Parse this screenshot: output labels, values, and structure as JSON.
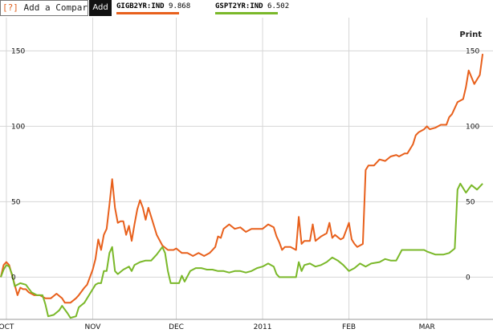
{
  "toolbar": {
    "help_label": "[?]",
    "compare_placeholder": "Add a Comparis",
    "add_label": "Add",
    "print_label": "Print"
  },
  "legend": [
    {
      "label": "GIGB2YR:IND",
      "value": "9.868",
      "color": "#e8601c"
    },
    {
      "label": "GSPT2YR:IND",
      "value": "6.502",
      "color": "#7ab829"
    }
  ],
  "chart_data": {
    "type": "line",
    "title": "",
    "xlabel": "",
    "ylabel": "",
    "ylim": [
      -28,
      172
    ],
    "xlim": [
      "2010-09-29",
      "2011-03-23"
    ],
    "y_ticks": [
      0,
      50,
      100,
      150
    ],
    "x_ticks": [
      {
        "date": "2010-10-01",
        "label": "OCT"
      },
      {
        "date": "2010-11-01",
        "label": "NOV"
      },
      {
        "date": "2010-12-01",
        "label": "DEC"
      },
      {
        "date": "2011-01-01",
        "label": "2011"
      },
      {
        "date": "2011-02-01",
        "label": "FEB"
      },
      {
        "date": "2011-03-01",
        "label": "MAR"
      }
    ],
    "grid": true,
    "series": [
      {
        "name": "GIGB2YR:IND",
        "color": "#e8601c",
        "points": [
          [
            "2010-09-29",
            0
          ],
          [
            "2010-09-30",
            8
          ],
          [
            "2010-10-01",
            10
          ],
          [
            "2010-10-02",
            8
          ],
          [
            "2010-10-04",
            -5
          ],
          [
            "2010-10-05",
            -12
          ],
          [
            "2010-10-06",
            -7
          ],
          [
            "2010-10-07",
            -8
          ],
          [
            "2010-10-08",
            -8
          ],
          [
            "2010-10-09",
            -10
          ],
          [
            "2010-10-11",
            -12
          ],
          [
            "2010-10-13",
            -12
          ],
          [
            "2010-10-15",
            -14
          ],
          [
            "2010-10-17",
            -14
          ],
          [
            "2010-10-19",
            -11
          ],
          [
            "2010-10-21",
            -14
          ],
          [
            "2010-10-22",
            -17
          ],
          [
            "2010-10-24",
            -17
          ],
          [
            "2010-10-26",
            -14
          ],
          [
            "2010-10-27",
            -12
          ],
          [
            "2010-10-29",
            -7
          ],
          [
            "2010-10-30",
            -5
          ],
          [
            "2010-11-01",
            5
          ],
          [
            "2010-11-02",
            12
          ],
          [
            "2010-11-03",
            25
          ],
          [
            "2010-11-04",
            18
          ],
          [
            "2010-11-05",
            28
          ],
          [
            "2010-11-06",
            32
          ],
          [
            "2010-11-07",
            48
          ],
          [
            "2010-11-08",
            65
          ],
          [
            "2010-11-09",
            46
          ],
          [
            "2010-11-10",
            36
          ],
          [
            "2010-11-11",
            37
          ],
          [
            "2010-11-12",
            37
          ],
          [
            "2010-11-13",
            28
          ],
          [
            "2010-11-14",
            34
          ],
          [
            "2010-11-15",
            24
          ],
          [
            "2010-11-16",
            35
          ],
          [
            "2010-11-17",
            45
          ],
          [
            "2010-11-18",
            51
          ],
          [
            "2010-11-19",
            46
          ],
          [
            "2010-11-20",
            38
          ],
          [
            "2010-11-21",
            46
          ],
          [
            "2010-11-22",
            40
          ],
          [
            "2010-11-24",
            28
          ],
          [
            "2010-11-26",
            21
          ],
          [
            "2010-11-28",
            18
          ],
          [
            "2010-11-30",
            18
          ],
          [
            "2010-12-01",
            19
          ],
          [
            "2010-12-03",
            16
          ],
          [
            "2010-12-05",
            16
          ],
          [
            "2010-12-07",
            14
          ],
          [
            "2010-12-09",
            16
          ],
          [
            "2010-12-11",
            14
          ],
          [
            "2010-12-13",
            16
          ],
          [
            "2010-12-15",
            20
          ],
          [
            "2010-12-16",
            27
          ],
          [
            "2010-12-17",
            26
          ],
          [
            "2010-12-18",
            32
          ],
          [
            "2010-12-20",
            35
          ],
          [
            "2010-12-22",
            32
          ],
          [
            "2010-12-24",
            33
          ],
          [
            "2010-12-26",
            30
          ],
          [
            "2010-12-28",
            32
          ],
          [
            "2010-12-30",
            32
          ],
          [
            "2011-01-01",
            32
          ],
          [
            "2011-01-03",
            35
          ],
          [
            "2011-01-05",
            33
          ],
          [
            "2011-01-06",
            27
          ],
          [
            "2011-01-07",
            23
          ],
          [
            "2011-01-08",
            18
          ],
          [
            "2011-01-09",
            20
          ],
          [
            "2011-01-11",
            20
          ],
          [
            "2011-01-13",
            18
          ],
          [
            "2011-01-14",
            40
          ],
          [
            "2011-01-15",
            22
          ],
          [
            "2011-01-16",
            24
          ],
          [
            "2011-01-18",
            24
          ],
          [
            "2011-01-19",
            35
          ],
          [
            "2011-01-20",
            24
          ],
          [
            "2011-01-22",
            27
          ],
          [
            "2011-01-24",
            29
          ],
          [
            "2011-01-25",
            36
          ],
          [
            "2011-01-26",
            26
          ],
          [
            "2011-01-27",
            28
          ],
          [
            "2011-01-29",
            25
          ],
          [
            "2011-01-30",
            26
          ],
          [
            "2011-02-01",
            36
          ],
          [
            "2011-02-02",
            25
          ],
          [
            "2011-02-03",
            22
          ],
          [
            "2011-02-04",
            20
          ],
          [
            "2011-02-06",
            22
          ],
          [
            "2011-02-07",
            71
          ],
          [
            "2011-02-08",
            74
          ],
          [
            "2011-02-10",
            74
          ],
          [
            "2011-02-12",
            78
          ],
          [
            "2011-02-14",
            77
          ],
          [
            "2011-02-16",
            80
          ],
          [
            "2011-02-18",
            81
          ],
          [
            "2011-02-19",
            80
          ],
          [
            "2011-02-21",
            82
          ],
          [
            "2011-02-22",
            82
          ],
          [
            "2011-02-24",
            88
          ],
          [
            "2011-02-25",
            94
          ],
          [
            "2011-02-26",
            96
          ],
          [
            "2011-02-28",
            98
          ],
          [
            "2011-03-01",
            100
          ],
          [
            "2011-03-02",
            98
          ],
          [
            "2011-03-04",
            99
          ],
          [
            "2011-03-06",
            101
          ],
          [
            "2011-03-08",
            101
          ],
          [
            "2011-03-09",
            106
          ],
          [
            "2011-03-10",
            108
          ],
          [
            "2011-03-12",
            116
          ],
          [
            "2011-03-14",
            118
          ],
          [
            "2011-03-15",
            126
          ],
          [
            "2011-03-16",
            137
          ],
          [
            "2011-03-18",
            128
          ],
          [
            "2011-03-20",
            134
          ],
          [
            "2011-03-21",
            148
          ]
        ]
      },
      {
        "name": "GSPT2YR:IND",
        "color": "#7ab829",
        "points": [
          [
            "2010-09-29",
            0
          ],
          [
            "2010-09-30",
            5
          ],
          [
            "2010-10-01",
            8
          ],
          [
            "2010-10-02",
            7
          ],
          [
            "2010-10-03",
            2
          ],
          [
            "2010-10-04",
            -6
          ],
          [
            "2010-10-06",
            -4
          ],
          [
            "2010-10-08",
            -5
          ],
          [
            "2010-10-10",
            -10
          ],
          [
            "2010-10-12",
            -12
          ],
          [
            "2010-10-14",
            -12
          ],
          [
            "2010-10-15",
            -18
          ],
          [
            "2010-10-16",
            -26
          ],
          [
            "2010-10-18",
            -25
          ],
          [
            "2010-10-20",
            -22
          ],
          [
            "2010-10-21",
            -19
          ],
          [
            "2010-10-23",
            -24
          ],
          [
            "2010-10-24",
            -27
          ],
          [
            "2010-10-26",
            -26
          ],
          [
            "2010-10-27",
            -20
          ],
          [
            "2010-10-29",
            -17
          ],
          [
            "2010-10-31",
            -11
          ],
          [
            "2010-11-02",
            -5
          ],
          [
            "2010-11-03",
            -4
          ],
          [
            "2010-11-04",
            -4
          ],
          [
            "2010-11-05",
            4
          ],
          [
            "2010-11-06",
            4
          ],
          [
            "2010-11-07",
            16
          ],
          [
            "2010-11-08",
            20
          ],
          [
            "2010-11-09",
            4
          ],
          [
            "2010-11-10",
            2
          ],
          [
            "2010-11-12",
            5
          ],
          [
            "2010-11-14",
            7
          ],
          [
            "2010-11-15",
            4
          ],
          [
            "2010-11-16",
            8
          ],
          [
            "2010-11-18",
            10
          ],
          [
            "2010-11-20",
            11
          ],
          [
            "2010-11-22",
            11
          ],
          [
            "2010-11-24",
            15
          ],
          [
            "2010-11-26",
            20
          ],
          [
            "2010-11-27",
            16
          ],
          [
            "2010-11-28",
            4
          ],
          [
            "2010-11-29",
            -4
          ],
          [
            "2010-12-02",
            -4
          ],
          [
            "2010-12-03",
            1
          ],
          [
            "2010-12-04",
            -3
          ],
          [
            "2010-12-06",
            4
          ],
          [
            "2010-12-08",
            6
          ],
          [
            "2010-12-10",
            6
          ],
          [
            "2010-12-12",
            5
          ],
          [
            "2010-12-14",
            5
          ],
          [
            "2010-12-16",
            4
          ],
          [
            "2010-12-18",
            4
          ],
          [
            "2010-12-20",
            3
          ],
          [
            "2010-12-22",
            4
          ],
          [
            "2010-12-24",
            4
          ],
          [
            "2010-12-26",
            3
          ],
          [
            "2010-12-28",
            4
          ],
          [
            "2010-12-30",
            6
          ],
          [
            "2011-01-01",
            7
          ],
          [
            "2011-01-03",
            9
          ],
          [
            "2011-01-05",
            7
          ],
          [
            "2011-01-06",
            2
          ],
          [
            "2011-01-07",
            0
          ],
          [
            "2011-01-09",
            0
          ],
          [
            "2011-01-11",
            0
          ],
          [
            "2011-01-13",
            0
          ],
          [
            "2011-01-14",
            10
          ],
          [
            "2011-01-15",
            4
          ],
          [
            "2011-01-16",
            8
          ],
          [
            "2011-01-18",
            9
          ],
          [
            "2011-01-20",
            7
          ],
          [
            "2011-01-22",
            8
          ],
          [
            "2011-01-24",
            10
          ],
          [
            "2011-01-26",
            13
          ],
          [
            "2011-01-28",
            11
          ],
          [
            "2011-01-30",
            8
          ],
          [
            "2011-02-01",
            4
          ],
          [
            "2011-02-03",
            6
          ],
          [
            "2011-02-05",
            9
          ],
          [
            "2011-02-07",
            7
          ],
          [
            "2011-02-09",
            9
          ],
          [
            "2011-02-12",
            10
          ],
          [
            "2011-02-14",
            12
          ],
          [
            "2011-02-16",
            11
          ],
          [
            "2011-02-18",
            11
          ],
          [
            "2011-02-20",
            18
          ],
          [
            "2011-02-24",
            18
          ],
          [
            "2011-02-28",
            18
          ],
          [
            "2011-03-01",
            17
          ],
          [
            "2011-03-04",
            15
          ],
          [
            "2011-03-07",
            15
          ],
          [
            "2011-03-09",
            16
          ],
          [
            "2011-03-11",
            19
          ],
          [
            "2011-03-12",
            58
          ],
          [
            "2011-03-13",
            62
          ],
          [
            "2011-03-15",
            56
          ],
          [
            "2011-03-17",
            61
          ],
          [
            "2011-03-19",
            58
          ],
          [
            "2011-03-21",
            62
          ]
        ]
      }
    ]
  }
}
